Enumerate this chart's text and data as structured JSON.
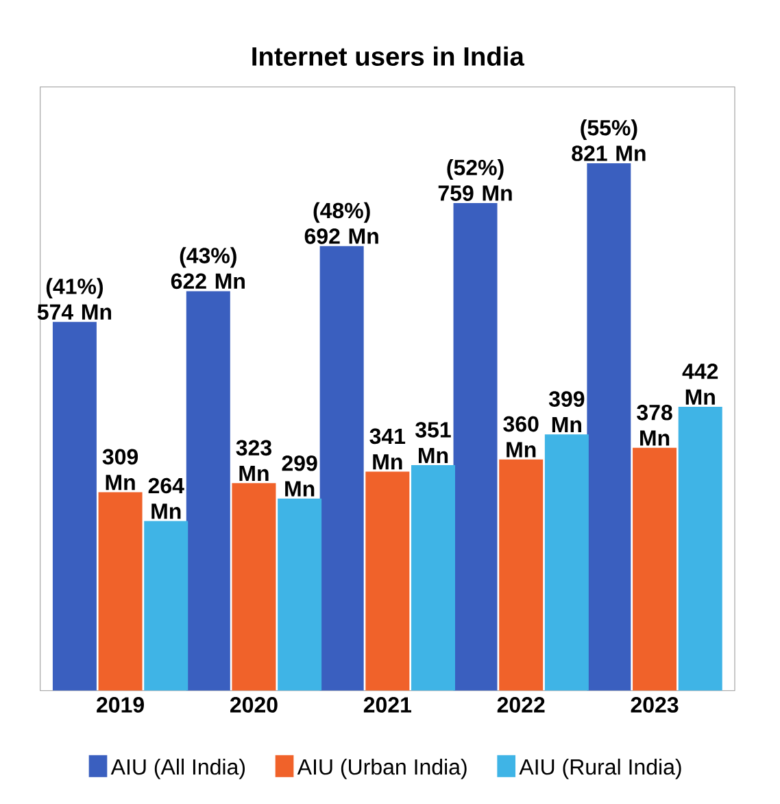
{
  "chart_data": {
    "type": "bar",
    "title": "Internet users in India",
    "categories": [
      "2019",
      "2020",
      "2021",
      "2022",
      "2023"
    ],
    "series": [
      {
        "name": "AIU (All India)",
        "color": "#3a5fbf",
        "values": [
          574,
          622,
          692,
          759,
          821
        ],
        "value_labels": [
          "(41%) 574 Mn",
          "(43%) 622 Mn",
          "(48%) 692 Mn",
          "(52%) 759 Mn",
          "(55%) 821 Mn"
        ]
      },
      {
        "name": "AIU (Urban India)",
        "color": "#f0622a",
        "values": [
          309,
          323,
          341,
          360,
          378
        ],
        "value_labels": [
          "309 Mn",
          "323 Mn",
          "341 Mn",
          "360 Mn",
          "378 Mn"
        ]
      },
      {
        "name": "AIU (Rural India)",
        "color": "#3fb4e6",
        "values": [
          264,
          299,
          351,
          399,
          442
        ],
        "value_labels": [
          "264 Mn",
          "299 Mn",
          "351 Mn",
          "399 Mn",
          "442 Mn"
        ]
      }
    ],
    "ylim": [
      0,
      940
    ],
    "tick_labels": "x",
    "legend": "bottom"
  }
}
